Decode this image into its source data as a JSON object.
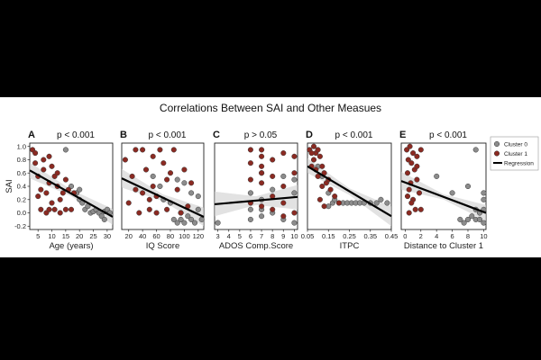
{
  "figure_title": "Correlations Between SAI and Other Measues",
  "chart_data": [
    {
      "type": "scatter",
      "letter": "A",
      "pvalue": "p < 0.001",
      "xlabel": "Age (years)",
      "ylabel": "SAI",
      "xlim": [
        2,
        32
      ],
      "ylim": [
        -0.25,
        1.05
      ],
      "xticks": [
        5,
        10,
        15,
        20,
        25,
        30
      ],
      "yticks": [
        -0.2,
        0.0,
        0.2,
        0.4,
        0.6,
        0.8,
        1.0
      ],
      "ytick_labels": [
        "-0.2",
        "0.0",
        "0.2",
        "0.4",
        "0.6",
        "0.8",
        "1.0"
      ],
      "regression": {
        "x": [
          2,
          32
        ],
        "y": [
          0.64,
          -0.06
        ]
      },
      "band": {
        "x": [
          2,
          17,
          32
        ],
        "lower": [
          0.52,
          0.25,
          -0.18
        ],
        "upper": [
          0.76,
          0.35,
          0.06
        ]
      },
      "series": [
        {
          "name": "Cluster 0",
          "color": "#8c8c8c",
          "x": [
            15,
            17,
            19,
            20,
            21,
            22,
            24,
            25,
            26,
            27,
            28,
            29,
            29,
            30,
            31,
            23,
            20
          ],
          "y": [
            0.95,
            0.4,
            0.3,
            0.2,
            0.15,
            0.05,
            0.0,
            0.02,
            0.05,
            0.0,
            -0.05,
            0.02,
            -0.1,
            0.05,
            0.0,
            0.1,
            0.35
          ]
        },
        {
          "name": "Cluster 1",
          "color": "#8b2a22",
          "x": [
            3,
            4,
            4,
            5,
            5,
            6,
            6,
            7,
            7,
            8,
            8,
            9,
            9,
            10,
            10,
            11,
            11,
            12,
            12,
            13,
            13,
            14,
            15,
            15,
            16,
            17,
            18,
            9
          ],
          "y": [
            0.95,
            0.75,
            0.9,
            0.55,
            0.25,
            0.05,
            0.35,
            0.8,
            0.65,
            0.0,
            0.3,
            0.85,
            0.45,
            0.7,
            0.15,
            0.55,
            0.05,
            0.4,
            0.6,
            0.2,
            0.0,
            0.3,
            0.5,
            0.05,
            0.35,
            0.05,
            0.3,
            0.05
          ]
        }
      ]
    },
    {
      "type": "scatter",
      "letter": "B",
      "pvalue": "p < 0.001",
      "xlabel": "IQ Score",
      "ylabel": "",
      "xlim": [
        10,
        128
      ],
      "ylim": [
        -0.25,
        1.05
      ],
      "xticks": [
        20,
        40,
        60,
        80,
        100,
        120
      ],
      "yticks": [],
      "ytick_labels": [],
      "regression": {
        "x": [
          10,
          128
        ],
        "y": [
          0.52,
          -0.06
        ]
      },
      "band": {
        "x": [
          10,
          69,
          128
        ],
        "lower": [
          0.38,
          0.18,
          -0.2
        ],
        "upper": [
          0.66,
          0.28,
          0.08
        ]
      },
      "series": [
        {
          "name": "Cluster 0",
          "color": "#8c8c8c",
          "x": [
            55,
            65,
            70,
            80,
            85,
            90,
            95,
            100,
            105,
            110,
            115,
            120,
            125,
            90,
            100,
            110,
            95,
            120
          ],
          "y": [
            0.55,
            0.4,
            0.2,
            0.15,
            -0.1,
            -0.15,
            -0.1,
            -0.15,
            -0.05,
            -0.1,
            -0.15,
            0.05,
            -0.1,
            0.5,
            0.45,
            0.3,
            0.0,
            0.25
          ]
        },
        {
          "name": "Cluster 1",
          "color": "#8b2a22",
          "x": [
            15,
            20,
            25,
            30,
            35,
            40,
            40,
            45,
            50,
            55,
            55,
            60,
            65,
            70,
            75,
            75,
            80,
            85,
            90,
            95,
            100,
            105,
            110,
            60,
            30,
            50
          ],
          "y": [
            0.8,
            0.15,
            0.55,
            0.95,
            0.0,
            0.95,
            0.3,
            0.65,
            0.05,
            0.85,
            0.4,
            0.25,
            0.95,
            0.75,
            0.05,
            0.5,
            0.6,
            0.95,
            0.35,
            0.0,
            0.65,
            0.1,
            0.45,
            0.0,
            0.35,
            0.2
          ]
        }
      ]
    },
    {
      "type": "scatter",
      "letter": "C",
      "pvalue": "p > 0.05",
      "xlabel": "ADOS Comp.Score",
      "ylabel": "",
      "xlim": [
        2.7,
        10.3
      ],
      "ylim": [
        -0.25,
        1.05
      ],
      "xticks": [
        3,
        4,
        5,
        6,
        7,
        8,
        9,
        10
      ],
      "yticks": [],
      "ytick_labels": [],
      "regression": {
        "x": [
          2.7,
          10.3
        ],
        "y": [
          0.13,
          0.24
        ]
      },
      "band": {
        "x": [
          2.7,
          6.5,
          10.3
        ],
        "lower": [
          -0.05,
          0.12,
          0.05
        ],
        "upper": [
          0.32,
          0.25,
          0.42
        ]
      },
      "series": [
        {
          "name": "Cluster 0",
          "color": "#8c8c8c",
          "x": [
            6,
            6,
            6,
            7,
            7,
            7,
            8,
            8,
            9,
            9,
            10,
            10,
            10,
            3,
            7
          ],
          "y": [
            0.3,
            0.05,
            -0.1,
            0.6,
            0.2,
            -0.05,
            0.35,
            0.0,
            0.55,
            -0.1,
            0.5,
            0.3,
            -0.15,
            -0.15,
            0.05
          ]
        },
        {
          "name": "Cluster 1",
          "color": "#8b2a22",
          "x": [
            6,
            6,
            6,
            6,
            7,
            7,
            7,
            7,
            7,
            7,
            8,
            8,
            8,
            8,
            9,
            9,
            9,
            9,
            10,
            10,
            10
          ],
          "y": [
            0.95,
            0.75,
            0.5,
            0.15,
            0.95,
            0.85,
            0.7,
            0.6,
            0.45,
            0.1,
            0.8,
            0.55,
            0.25,
            0.05,
            0.9,
            0.4,
            0.15,
            -0.05,
            0.85,
            0.6,
            0.0
          ]
        }
      ]
    },
    {
      "type": "scatter",
      "letter": "D",
      "pvalue": "p < 0.001",
      "xlabel": "ITPC",
      "ylabel": "",
      "xlim": [
        0.05,
        0.45
      ],
      "ylim": [
        -0.25,
        1.05
      ],
      "xticks": [
        0.05,
        0.15,
        0.25,
        0.35,
        0.45
      ],
      "yticks": [],
      "ytick_labels": [],
      "regression": {
        "x": [
          0.05,
          0.45
        ],
        "y": [
          0.7,
          -0.05
        ]
      },
      "band": {
        "x": [
          0.05,
          0.25,
          0.45
        ],
        "lower": [
          0.6,
          0.27,
          -0.2
        ],
        "upper": [
          0.82,
          0.37,
          0.1
        ]
      },
      "series": [
        {
          "name": "Cluster 0",
          "color": "#8c8c8c",
          "x": [
            0.1,
            0.12,
            0.15,
            0.17,
            0.18,
            0.2,
            0.22,
            0.24,
            0.26,
            0.28,
            0.3,
            0.32,
            0.35,
            0.38,
            0.4,
            0.43,
            0.15
          ],
          "y": [
            0.7,
            0.55,
            0.3,
            0.15,
            0.2,
            0.15,
            0.15,
            0.15,
            0.15,
            0.15,
            0.15,
            0.15,
            0.15,
            0.15,
            0.2,
            0.15,
            0.1
          ]
        },
        {
          "name": "Cluster 1",
          "color": "#8b2a22",
          "x": [
            0.06,
            0.07,
            0.08,
            0.08,
            0.09,
            0.1,
            0.1,
            0.11,
            0.12,
            0.12,
            0.13,
            0.14,
            0.15,
            0.16,
            0.18,
            0.2,
            0.07,
            0.09,
            0.11,
            0.13
          ],
          "y": [
            0.95,
            0.7,
            1.0,
            0.8,
            0.9,
            0.95,
            0.55,
            0.85,
            0.7,
            0.4,
            0.6,
            0.45,
            0.5,
            0.35,
            0.25,
            0.15,
            0.9,
            0.65,
            0.2,
            0.1
          ]
        }
      ]
    },
    {
      "type": "scatter",
      "letter": "E",
      "pvalue": "p < 0.001",
      "xlabel": "Distance to Cluster 1",
      "ylabel": "",
      "xlim": [
        -0.5,
        10.3
      ],
      "ylim": [
        -0.25,
        1.05
      ],
      "xticks": [
        0,
        2,
        4,
        6,
        8,
        10
      ],
      "yticks": [],
      "ytick_labels": [],
      "regression": {
        "x": [
          -0.5,
          10.3
        ],
        "y": [
          0.48,
          0.0
        ]
      },
      "band": {
        "x": [
          -0.5,
          4.9,
          10.3
        ],
        "lower": [
          0.35,
          0.2,
          -0.12
        ],
        "upper": [
          0.62,
          0.28,
          0.12
        ]
      },
      "series": [
        {
          "name": "Cluster 0",
          "color": "#8c8c8c",
          "x": [
            4,
            6,
            7,
            7.5,
            8,
            8.5,
            9,
            9,
            9.5,
            9.5,
            10,
            10,
            10,
            9,
            8,
            10
          ],
          "y": [
            0.55,
            0.3,
            -0.1,
            -0.15,
            -0.1,
            -0.05,
            -0.1,
            0.05,
            -0.1,
            0.0,
            -0.15,
            0.05,
            0.2,
            0.95,
            0.4,
            0.3
          ]
        },
        {
          "name": "Cluster 1",
          "color": "#8b2a22",
          "x": [
            0.2,
            0.3,
            0.4,
            0.5,
            0.6,
            0.7,
            0.8,
            1.0,
            1.0,
            1.2,
            1.3,
            1.5,
            1.5,
            1.8,
            2.0,
            2.0,
            0.5,
            0.8,
            1.5,
            0.3
          ],
          "y": [
            0.95,
            0.6,
            0.8,
            0.35,
            1.0,
            0.45,
            0.75,
            0.9,
            0.2,
            0.65,
            0.05,
            0.85,
            0.5,
            0.3,
            0.95,
            0.05,
            0.0,
            0.15,
            0.7,
            0.25
          ]
        }
      ]
    }
  ],
  "legend": {
    "items": [
      {
        "label": "Cluster 0",
        "kind": "marker",
        "color": "#8c8c8c"
      },
      {
        "label": "Cluster 1",
        "kind": "marker",
        "color": "#8b2a22"
      },
      {
        "label": "Regression",
        "kind": "line",
        "color": "#000000"
      }
    ]
  }
}
